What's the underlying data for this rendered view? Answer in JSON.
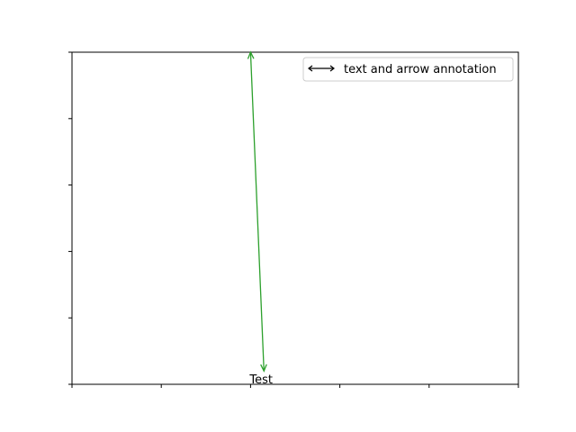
{
  "chart_data": {
    "type": "line",
    "title": "",
    "xlabel": "",
    "ylabel": "",
    "xlim": [
      0,
      5
    ],
    "ylim": [
      0,
      5
    ],
    "x_ticks": [
      0,
      1,
      2,
      3,
      4,
      5
    ],
    "y_ticks": [
      0,
      1,
      2,
      3,
      4,
      5
    ],
    "tick_labels_visible": false,
    "grid": false,
    "annotation": {
      "text": "Test",
      "text_position": [
        2.0,
        0.0
      ],
      "arrow_tail": [
        2.0,
        5.0
      ],
      "arrow_head": [
        2.15,
        0.2
      ],
      "arrow_style": "<->",
      "color": "#2ca02c"
    },
    "legend": {
      "placement": "top-right",
      "entries": [
        {
          "label": "text and arrow annotation",
          "color": "#000000",
          "marker": "double-arrow"
        }
      ]
    }
  }
}
